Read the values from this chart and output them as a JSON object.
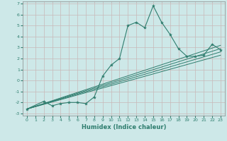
{
  "xlabel": "Humidex (Indice chaleur)",
  "ylabel": "",
  "xlim": [
    -0.5,
    23.5
  ],
  "ylim": [
    -3.2,
    7.2
  ],
  "xticks": [
    0,
    1,
    2,
    3,
    4,
    5,
    6,
    7,
    8,
    9,
    10,
    11,
    12,
    13,
    14,
    15,
    16,
    17,
    18,
    19,
    20,
    21,
    22,
    23
  ],
  "yticks": [
    -3,
    -2,
    -1,
    0,
    1,
    2,
    3,
    4,
    5,
    6,
    7
  ],
  "bg_color": "#cde8e8",
  "grid_color": "#b8d4d4",
  "line_color": "#2e7d6e",
  "main_line_x": [
    0,
    2,
    3,
    4,
    5,
    6,
    7,
    8,
    9,
    10,
    11,
    12,
    13,
    14,
    15,
    16,
    17,
    18,
    19,
    20,
    21,
    22,
    23
  ],
  "main_line_y": [
    -2.6,
    -1.9,
    -2.3,
    -2.1,
    -2.0,
    -2.0,
    -2.1,
    -1.5,
    0.4,
    1.4,
    2.0,
    5.0,
    5.3,
    4.8,
    6.8,
    5.3,
    4.2,
    2.9,
    2.2,
    2.2,
    2.3,
    3.3,
    2.8
  ],
  "straight_lines": [
    {
      "x": [
        0,
        23
      ],
      "y": [
        -2.6,
        3.2
      ]
    },
    {
      "x": [
        0,
        23
      ],
      "y": [
        -2.6,
        2.9
      ]
    },
    {
      "x": [
        0,
        23
      ],
      "y": [
        -2.6,
        2.6
      ]
    },
    {
      "x": [
        0,
        23
      ],
      "y": [
        -2.6,
        2.3
      ]
    }
  ]
}
